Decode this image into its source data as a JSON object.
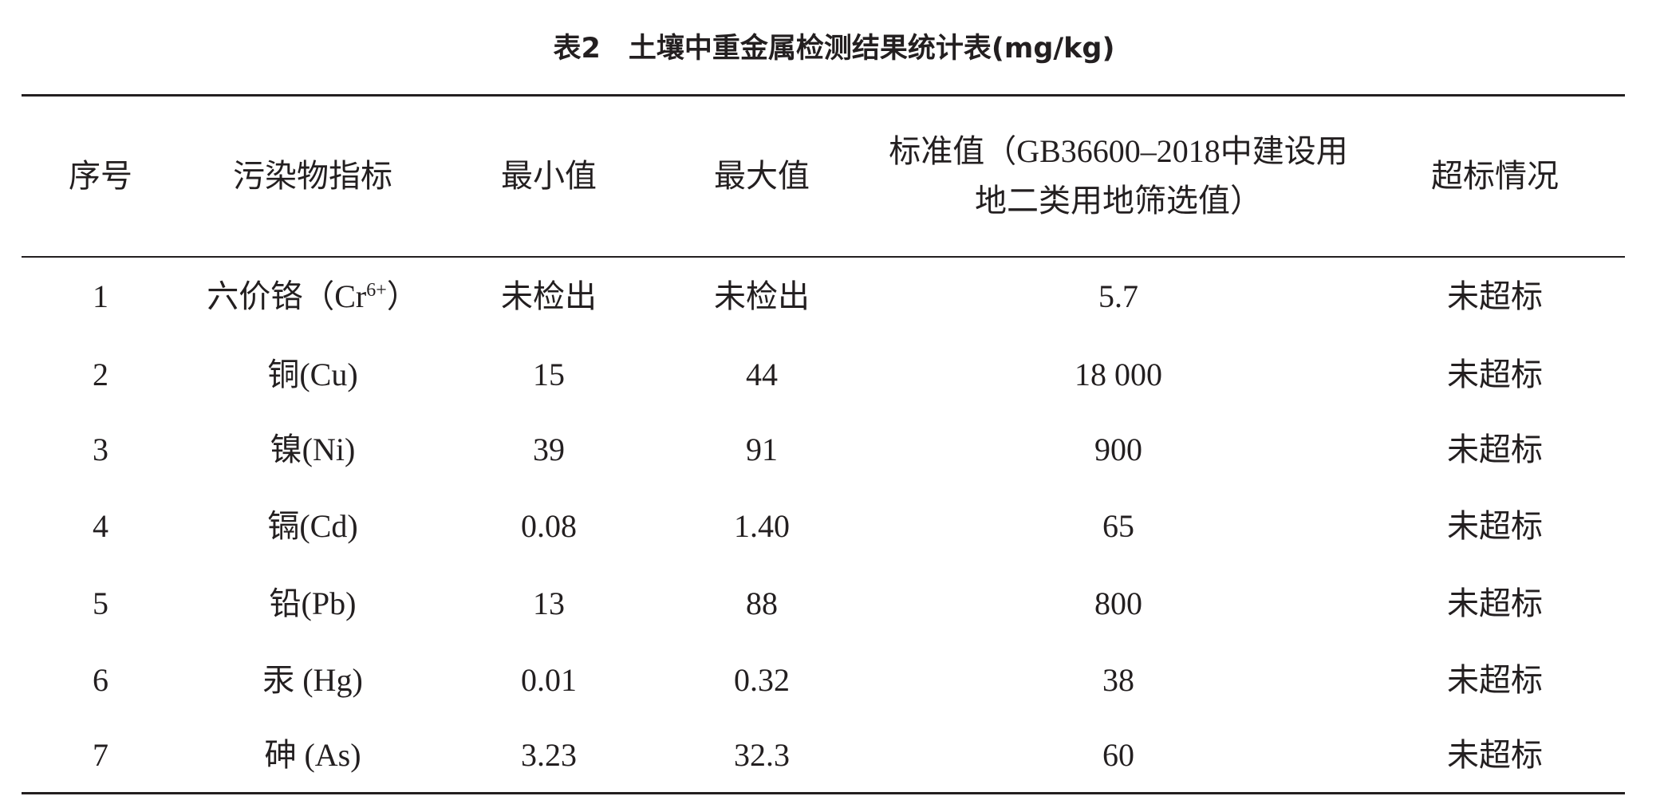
{
  "title": "表2　土壤中重金属检测结果统计表(mg/kg)",
  "table": {
    "header": [
      "序号",
      "污染物指标",
      "最小值",
      "最大值",
      [
        "标准值（GB36600–2018中建设用",
        "地二类用地筛选值）"
      ],
      "超标情况"
    ],
    "rows": [
      [
        "1",
        [
          "六价铬（Cr",
          "6+",
          "）"
        ],
        "未检出",
        "未检出",
        "5.7",
        "未超标"
      ],
      [
        "2",
        "铜(Cu)",
        "15",
        "44",
        "18 000",
        "未超标"
      ],
      [
        "3",
        "镍(Ni)",
        "39",
        "91",
        "900",
        "未超标"
      ],
      [
        "4",
        "镉(Cd)",
        "0.08",
        "1.40",
        "65",
        "未超标"
      ],
      [
        "5",
        "铅(Pb)",
        "13",
        "88",
        "800",
        "未超标"
      ],
      [
        "6",
        "汞 (Hg)",
        "0.01",
        "0.32",
        "38",
        "未超标"
      ],
      [
        "7",
        "砷 (As)",
        "3.23",
        "32.3",
        "60",
        "未超标"
      ]
    ]
  }
}
